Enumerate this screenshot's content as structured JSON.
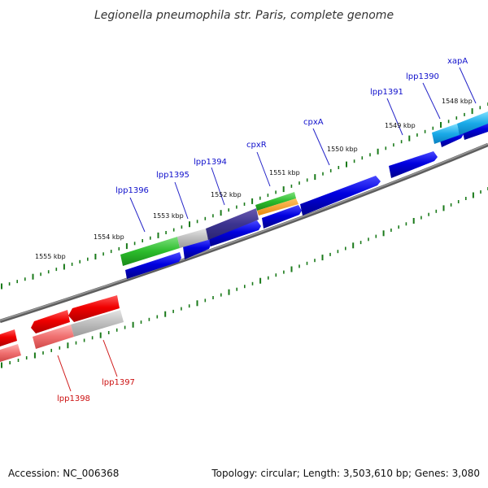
{
  "title": "Legionella pneumophila str. Paris, complete genome",
  "footer": {
    "accession": "Accession: NC_006368",
    "summary": "Topology: circular; Length: 3,503,610 bp; Genes: 3,080"
  },
  "kbp_labels": [
    "1555 kbp",
    "1554 kbp",
    "1553 kbp",
    "1552 kbp",
    "1551 kbp",
    "1550 kbp",
    "1549 kbp",
    "1548 kbp"
  ],
  "forward_gene_labels": [
    "lpp1396",
    "lpp1395",
    "lpp1394",
    "cpxR",
    "cpxA",
    "lpp1391",
    "lpp1390",
    "xapA"
  ],
  "reverse_gene_labels": [
    "lpp1398",
    "lpp1397"
  ],
  "colors": {
    "cds_forward": "#0000e0",
    "cds_reverse": "#ff0000",
    "backbone": "#7a7a7a",
    "ticks": "#1a7a1a",
    "gene_label_forward": "#1010cc",
    "gene_label_reverse": "#cc1010"
  }
}
